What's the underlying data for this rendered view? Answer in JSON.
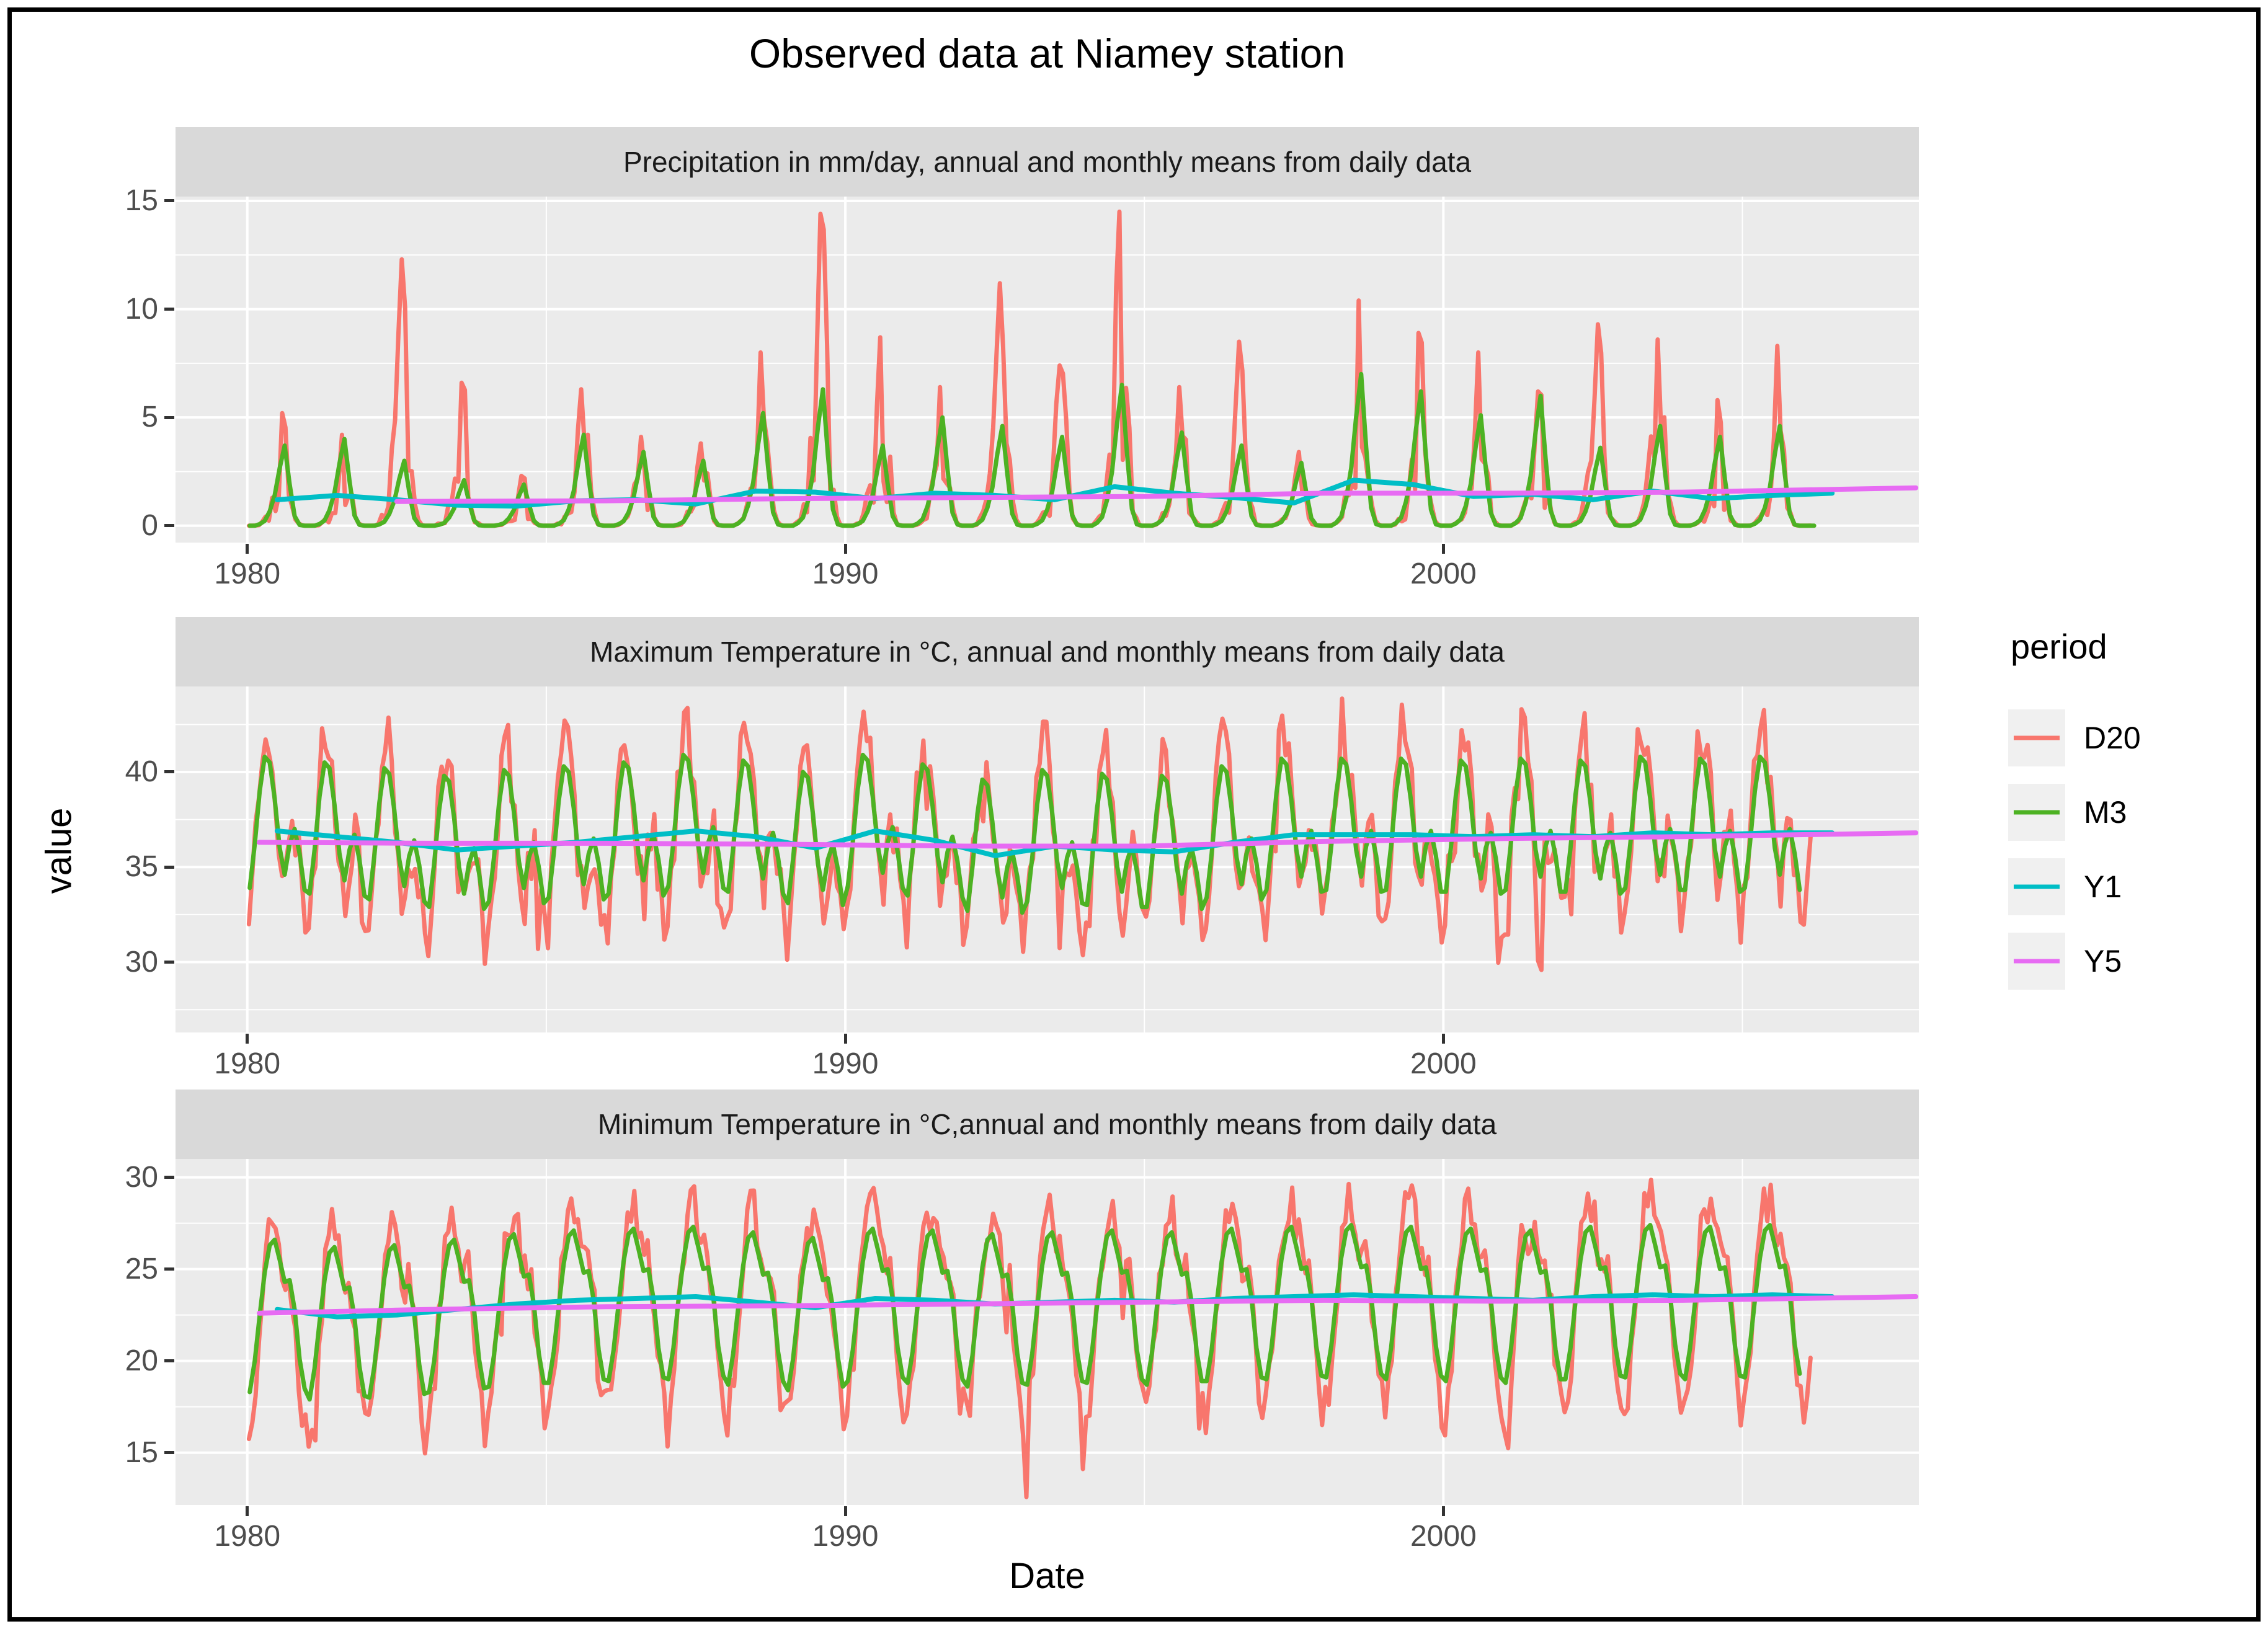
{
  "title": "Observed data at Niamey station",
  "axes": {
    "x_label": "Date",
    "y_label": "value"
  },
  "legend": {
    "title": "period",
    "items": [
      {
        "label": "D20",
        "color": "#F8766D"
      },
      {
        "label": "M3",
        "color": "#4DB223"
      },
      {
        "label": "Y1",
        "color": "#00BEC6"
      },
      {
        "label": "Y5",
        "color": "#E76BF3"
      }
    ]
  },
  "colors": {
    "panel_bg": "#EBEBEB",
    "strip_bg": "#D9D9D9",
    "grid": "#FFFFFF",
    "tick_text": "#4D4D4D",
    "strip_text": "#1A1A1A",
    "legend_key_bg": "#F0F0F0",
    "frame": "#000000"
  },
  "chart_data": {
    "type": "line",
    "title": "Observed data at Niamey station",
    "x": {
      "label": "Date",
      "domain": [
        1978.8,
        2007.95
      ],
      "ticks": [
        1980,
        1990,
        2000
      ],
      "tick_labels": [
        "1980",
        "1990",
        "2000"
      ],
      "minor": [
        1985,
        1995,
        2005
      ]
    },
    "y_label": "value",
    "legend_title": "period",
    "series_names": [
      "D20",
      "M3",
      "Y1",
      "Y5"
    ],
    "years_start": 1980,
    "data_end_year": 2006.2,
    "samples_per_year_d20": 18,
    "panels": [
      {
        "kind": "precip",
        "strip": "Precipitation in mm/day, annual and monthly means from daily data",
        "y": {
          "domain": [
            -0.78,
            15.2
          ],
          "ticks": [
            0,
            5,
            10,
            15
          ],
          "tick_labels": [
            "0",
            "5",
            "10",
            "15"
          ],
          "minor": [
            2.5,
            7.5,
            12.5
          ]
        },
        "seed": 11,
        "monthly_profile": [
          0,
          0,
          0.02,
          0.06,
          0.18,
          0.38,
          0.72,
          1,
          0.52,
          0.12,
          0.01,
          0
        ],
        "d20_annual_peaks": [
          5.2,
          4.2,
          12.3,
          6.6,
          2.3,
          6.3,
          4.1,
          3.8,
          8.0,
          14.4,
          8.7,
          6.4,
          11.2,
          7.4,
          14.5,
          6.4,
          8.5,
          3.4,
          10.4,
          8.9,
          8.0,
          6.2,
          9.3,
          8.6,
          5.8,
          8.3
        ],
        "m3_annual_peaks": [
          3.7,
          4.0,
          3.0,
          2.1,
          1.9,
          4.2,
          3.4,
          3.0,
          5.2,
          6.3,
          3.7,
          5.0,
          4.6,
          4.1,
          6.5,
          4.3,
          3.7,
          2.9,
          7.0,
          6.2,
          5.1,
          6.0,
          3.6,
          4.6,
          4.1,
          4.6
        ],
        "d20_noise": 0.95,
        "y1_annual": [
          1.2,
          1.4,
          1.2,
          0.95,
          0.9,
          1.15,
          1.2,
          1.0,
          1.6,
          1.55,
          1.25,
          1.5,
          1.4,
          1.2,
          1.8,
          1.5,
          1.3,
          1.05,
          2.1,
          1.9,
          1.35,
          1.45,
          1.2,
          1.6,
          1.25,
          1.4,
          1.5
        ],
        "y5_points": [
          [
            1982.5,
            1.12
          ],
          [
            1986,
            1.15
          ],
          [
            1989,
            1.25
          ],
          [
            1992,
            1.3
          ],
          [
            1995,
            1.35
          ],
          [
            1998,
            1.5
          ],
          [
            2001,
            1.5
          ],
          [
            2004,
            1.55
          ],
          [
            2006,
            1.65
          ],
          [
            2007.9,
            1.75
          ]
        ]
      },
      {
        "kind": "temp",
        "strip": "Maximum Temperature in °C, annual and monthly means from daily data",
        "y": {
          "domain": [
            26.3,
            44.5
          ],
          "ticks": [
            30,
            35,
            40
          ],
          "tick_labels": [
            "30",
            "35",
            "40"
          ],
          "minor": [
            27.5,
            32.5,
            37.5,
            42.5
          ]
        },
        "seed": 23,
        "monthly_profile": [
          33.6,
          35.9,
          38.7,
          40.5,
          40.2,
          38.3,
          35.7,
          34.3,
          35.9,
          36.7,
          35.4,
          33.5
        ],
        "profile_mean": 36.56,
        "annual_offsets": [
          0.3,
          0,
          -0.3,
          -0.7,
          -0.4,
          -0.2,
          0,
          0.4,
          0.1,
          -0.5,
          0.4,
          -0.1,
          -0.9,
          -0.4,
          -0.6,
          -0.7,
          -0.2,
          0.2,
          0.2,
          0.2,
          0.1,
          0.2,
          0.1,
          0.3,
          0.2,
          0.3
        ],
        "d20_exaggeration": 1.42,
        "d20_noise": 1.5,
        "y1_annual": [
          36.9,
          36.6,
          36.3,
          35.9,
          36.1,
          36.3,
          36.6,
          36.9,
          36.6,
          36.0,
          36.9,
          36.4,
          35.6,
          36.1,
          35.9,
          35.8,
          36.3,
          36.7,
          36.7,
          36.7,
          36.6,
          36.7,
          36.6,
          36.8,
          36.7,
          36.8,
          36.8
        ],
        "y5_points": [
          [
            1980.2,
            36.3
          ],
          [
            1983,
            36.25
          ],
          [
            1986,
            36.25
          ],
          [
            1989,
            36.2
          ],
          [
            1992,
            36.1
          ],
          [
            1995,
            36.1
          ],
          [
            1998,
            36.35
          ],
          [
            2001,
            36.5
          ],
          [
            2004,
            36.6
          ],
          [
            2007.9,
            36.8
          ]
        ]
      },
      {
        "kind": "temp",
        "strip": "Minimum Temperature in °C,annual and monthly means from daily data",
        "y": {
          "domain": [
            12.15,
            31.0
          ],
          "ticks": [
            15,
            20,
            25,
            30
          ],
          "tick_labels": [
            "15",
            "20",
            "25",
            "30"
          ],
          "minor": [
            17.5,
            22.5,
            27.5
          ]
        },
        "seed": 37,
        "monthly_profile": [
          18.9,
          20.6,
          23.1,
          25.4,
          26.9,
          27.2,
          26.1,
          24.9,
          25.0,
          23.4,
          20.7,
          19.1
        ],
        "profile_mean": 23.44,
        "annual_offsets": [
          -0.6,
          -1.0,
          -0.9,
          -0.6,
          -0.3,
          -0.1,
          0,
          0.1,
          -0.2,
          -0.5,
          0,
          -0.1,
          -0.3,
          -0.2,
          -0.1,
          -0.2,
          0,
          0.1,
          0.2,
          0.1,
          0,
          -0.1,
          0.1,
          0.2,
          0.1,
          0.2
        ],
        "d20_exaggeration": 1.38,
        "d20_noise": 1.3,
        "y1_annual": [
          22.8,
          22.4,
          22.5,
          22.8,
          23.1,
          23.3,
          23.4,
          23.5,
          23.2,
          22.9,
          23.4,
          23.3,
          23.1,
          23.2,
          23.3,
          23.2,
          23.4,
          23.5,
          23.6,
          23.5,
          23.4,
          23.3,
          23.5,
          23.6,
          23.5,
          23.6,
          23.5
        ],
        "y5_points": [
          [
            1980.2,
            22.6
          ],
          [
            1983,
            22.8
          ],
          [
            1986,
            22.95
          ],
          [
            1989,
            23.0
          ],
          [
            1992,
            23.1
          ],
          [
            1995,
            23.2
          ],
          [
            1998,
            23.3
          ],
          [
            2001,
            23.25
          ],
          [
            2004,
            23.3
          ],
          [
            2007.9,
            23.5
          ]
        ]
      }
    ]
  }
}
